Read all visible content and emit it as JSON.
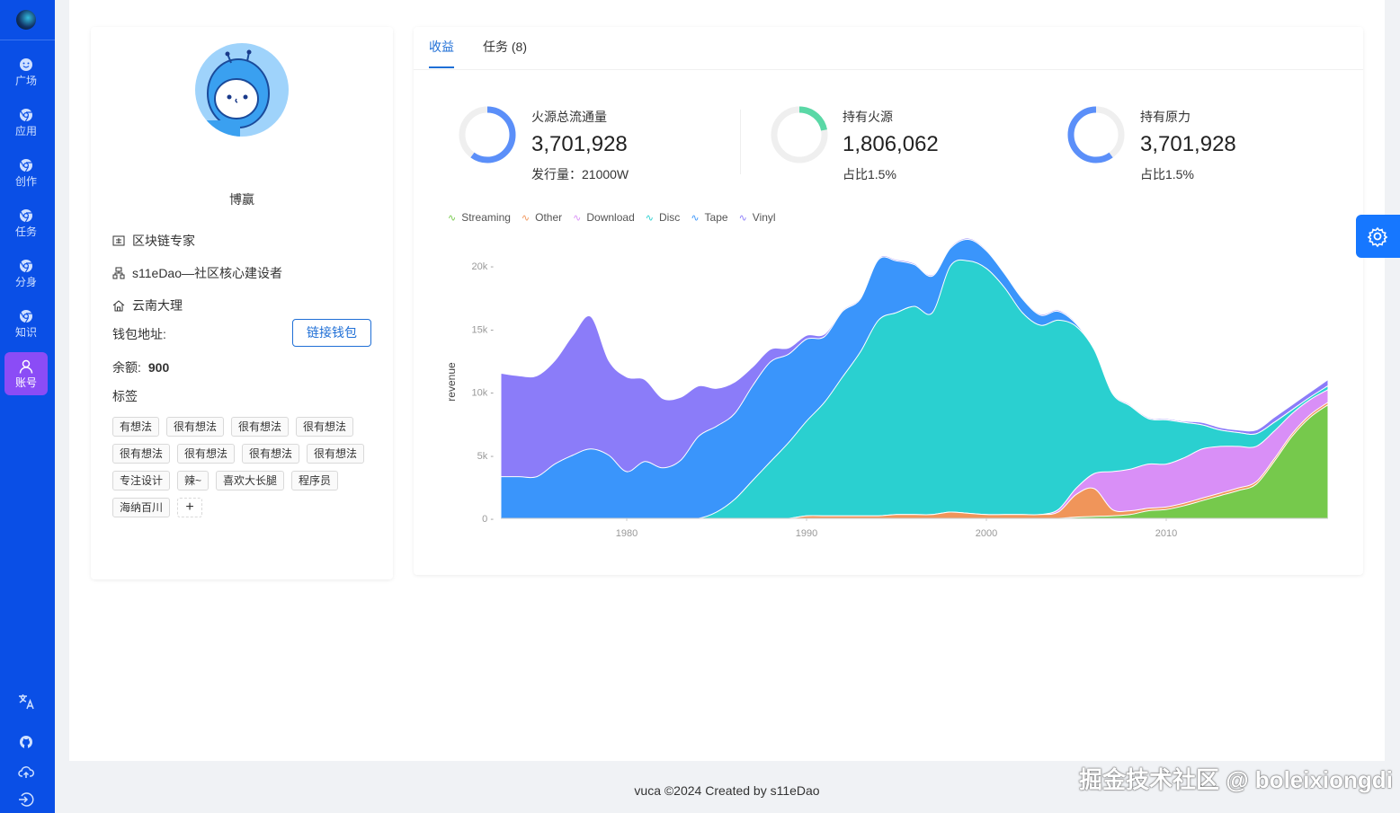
{
  "sidebar": {
    "items": [
      {
        "label": "广场",
        "icon": "smile-icon"
      },
      {
        "label": "应用",
        "icon": "chrome-icon"
      },
      {
        "label": "创作",
        "icon": "chrome-icon"
      },
      {
        "label": "任务",
        "icon": "chrome-icon"
      },
      {
        "label": "分身",
        "icon": "chrome-icon"
      },
      {
        "label": "知识",
        "icon": "chrome-icon"
      },
      {
        "label": "账号",
        "icon": "user-icon",
        "active": true
      }
    ],
    "bottom_icons": [
      "translate-icon",
      "github-icon",
      "cloud-upload-icon",
      "logout-icon"
    ],
    "color": "#0a4fe6"
  },
  "profile": {
    "name": "博赢",
    "title": "区块链专家",
    "org": "s11eDao—社区核心建设者",
    "location": "云南大理",
    "wallet_label": "钱包地址:",
    "wallet_button": "链接钱包",
    "balance_label": "余额:",
    "balance": "900",
    "tags_label": "标签",
    "tags": [
      "有想法",
      "很有想法",
      "很有想法",
      "很有想法",
      "很有想法",
      "很有想法",
      "很有想法",
      "很有想法",
      "专注设计",
      "辣~",
      "喜欢大长腿",
      "程序员",
      "海纳百川"
    ],
    "add_tag": "+"
  },
  "tabs": [
    {
      "label": "收益",
      "active": true
    },
    {
      "label": "任务 (8)"
    }
  ],
  "stats": [
    {
      "title": "火源总流通量",
      "value": "3,701,928",
      "sub": "发行量：21000W",
      "fraction": 0.6,
      "color": "#5b8ff9"
    },
    {
      "title": "持有火源",
      "value": "1,806,062",
      "sub": "占比1.5%",
      "fraction": 0.22,
      "color": "#5ad8a6"
    },
    {
      "title": "持有原力",
      "value": "3,701,928",
      "sub": "占比1.5%",
      "fraction": 0.6,
      "color": "#5b8ff9"
    }
  ],
  "chart_data": {
    "type": "area",
    "stacked": true,
    "ylabel": "revenue",
    "xlabel": "",
    "ylim": [
      0,
      22500
    ],
    "xlim": [
      1973,
      2019
    ],
    "yticks": [
      "0 -",
      "5k -",
      "10k -",
      "15k -",
      "20k -"
    ],
    "ytick_values": [
      0,
      5000,
      10000,
      15000,
      20000
    ],
    "xticks": [
      "1980",
      "1990",
      "2000",
      "2010"
    ],
    "xtick_values": [
      1980,
      1990,
      2000,
      2010
    ],
    "legend_position": "top-left",
    "x": [
      1973,
      1974,
      1975,
      1976,
      1977,
      1978,
      1979,
      1980,
      1981,
      1982,
      1983,
      1984,
      1985,
      1986,
      1987,
      1988,
      1989,
      1990,
      1991,
      1992,
      1993,
      1994,
      1995,
      1996,
      1997,
      1998,
      1999,
      2000,
      2001,
      2002,
      2003,
      2004,
      2005,
      2006,
      2007,
      2008,
      2009,
      2010,
      2011,
      2012,
      2013,
      2014,
      2015,
      2016,
      2017,
      2018,
      2019
    ],
    "series": [
      {
        "name": "Streaming",
        "color": "#76c94c",
        "values": [
          0,
          0,
          0,
          0,
          0,
          0,
          0,
          0,
          0,
          0,
          0,
          0,
          0,
          0,
          0,
          0,
          0,
          0,
          0,
          0,
          0,
          0,
          0,
          0,
          0,
          0,
          0,
          0,
          0,
          0,
          0,
          0,
          100,
          150,
          200,
          300,
          600,
          700,
          1000,
          1400,
          1800,
          2200,
          2700,
          4500,
          6500,
          8000,
          9000
        ]
      },
      {
        "name": "Other",
        "color": "#f0955a",
        "values": [
          0,
          0,
          0,
          0,
          0,
          0,
          0,
          0,
          0,
          0,
          0,
          0,
          0,
          0,
          0,
          0,
          0,
          200,
          200,
          200,
          200,
          200,
          300,
          300,
          300,
          500,
          400,
          300,
          300,
          300,
          300,
          500,
          1800,
          2200,
          500,
          300,
          200,
          200,
          200,
          200,
          200,
          200,
          200,
          200,
          200,
          200,
          200
        ]
      },
      {
        "name": "Download",
        "color": "#d98ff7",
        "values": [
          0,
          0,
          0,
          0,
          0,
          0,
          0,
          0,
          0,
          0,
          0,
          0,
          0,
          0,
          0,
          0,
          0,
          0,
          0,
          0,
          0,
          0,
          0,
          0,
          0,
          0,
          0,
          0,
          0,
          0,
          0,
          200,
          500,
          1200,
          3000,
          3300,
          3500,
          3400,
          3600,
          3900,
          3700,
          3300,
          2800,
          2200,
          1600,
          1200,
          1000
        ]
      },
      {
        "name": "Disc",
        "color": "#2ad0d0",
        "values": [
          0,
          0,
          0,
          0,
          0,
          0,
          0,
          0,
          0,
          0,
          0,
          0,
          500,
          1500,
          3000,
          4500,
          6000,
          7500,
          9000,
          11000,
          13000,
          15500,
          16000,
          16500,
          16000,
          19500,
          20000,
          19500,
          18000,
          16000,
          15000,
          15000,
          12800,
          9800,
          6200,
          5000,
          3600,
          3500,
          2800,
          1900,
          1300,
          1100,
          1000,
          700,
          300,
          200,
          300
        ]
      },
      {
        "name": "Tape",
        "color": "#3a95fb",
        "values": [
          3300,
          3300,
          3300,
          4300,
          5000,
          5500,
          5000,
          3700,
          4500,
          4000,
          4600,
          6500,
          6800,
          6800,
          7500,
          7900,
          7000,
          6500,
          5200,
          5200,
          4200,
          4800,
          4100,
          3300,
          2900,
          1400,
          1700,
          1400,
          1100,
          1100,
          800,
          700,
          200,
          50,
          0,
          0,
          0,
          0,
          0,
          0,
          0,
          0,
          0,
          0,
          0,
          0,
          0
        ]
      },
      {
        "name": "Vinyl",
        "color": "#8b7cf9",
        "values": [
          8200,
          8000,
          8000,
          8200,
          9500,
          10500,
          7500,
          7500,
          6500,
          5500,
          5000,
          4000,
          3000,
          2500,
          1500,
          1000,
          500,
          300,
          200,
          100,
          100,
          100,
          100,
          100,
          100,
          100,
          100,
          100,
          100,
          100,
          100,
          100,
          100,
          100,
          100,
          100,
          100,
          100,
          100,
          200,
          200,
          200,
          300,
          400,
          400,
          400,
          500
        ]
      }
    ]
  },
  "footer": "vuca ©2024 Created by s11eDao",
  "watermark": "掘金技术社区 @ boleixiongdi"
}
